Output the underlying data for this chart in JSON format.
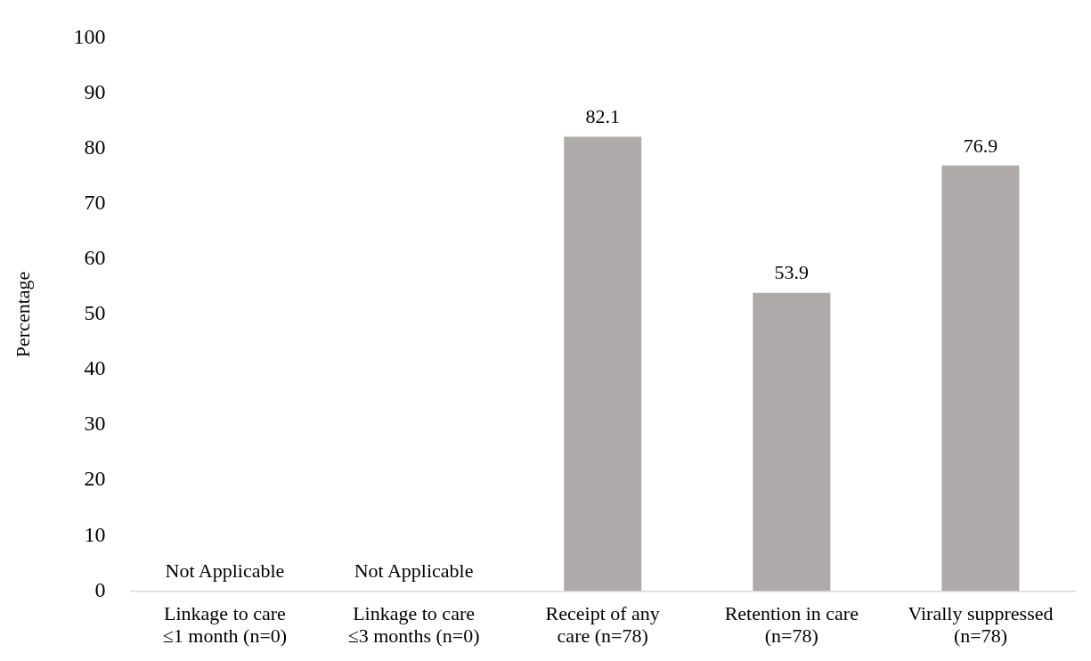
{
  "chart_data": {
    "type": "bar",
    "ylabel": "Percentage",
    "categories": [
      "Linkage to care\n≤1 month (n=0)",
      "Linkage to care\n≤3 months (n=0)",
      "Receipt of any\ncare (n=78)",
      "Retention in care\n(n=78)",
      "Virally suppressed\n(n=78)"
    ],
    "values": [
      null,
      null,
      82.1,
      53.9,
      76.9
    ],
    "value_labels": [
      "Not Applicable",
      "Not Applicable",
      "82.1",
      "53.9",
      "76.9"
    ],
    "color": "#aeaaaa",
    "ylim": [
      0,
      100
    ],
    "yticks": [
      0,
      10,
      20,
      30,
      40,
      50,
      60,
      70,
      80,
      90,
      100
    ],
    "grid": false,
    "legend": false
  }
}
